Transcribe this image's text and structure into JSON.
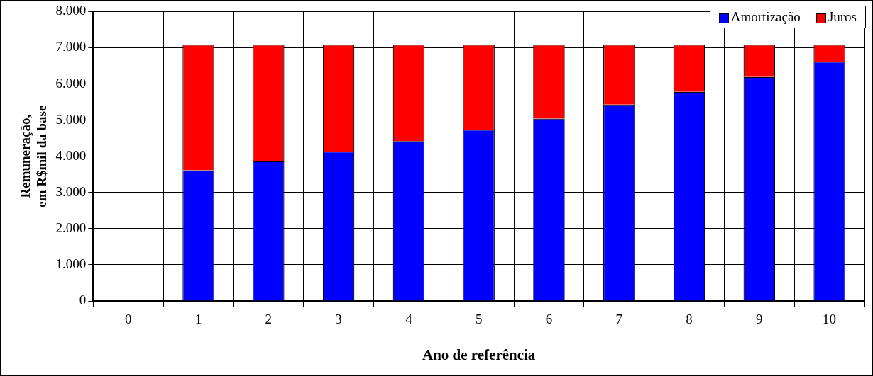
{
  "chart_data": {
    "type": "bar",
    "stacked": true,
    "xlabel": "Ano de referência",
    "ylabel": "Remuneração,\nem R$mil da base",
    "categories": [
      "0",
      "1",
      "2",
      "3",
      "4",
      "5",
      "6",
      "7",
      "8",
      "9",
      "10"
    ],
    "series": [
      {
        "name": "Amortização",
        "color": "#0000ff",
        "values": [
          0,
          3610,
          3860,
          4130,
          4420,
          4730,
          5040,
          5430,
          5780,
          6190,
          6610
        ]
      },
      {
        "name": "Juros",
        "color": "#ff0000",
        "values": [
          0,
          3470,
          3220,
          2950,
          2660,
          2350,
          2040,
          1650,
          1300,
          890,
          470
        ]
      }
    ],
    "ylim": [
      0,
      8000
    ],
    "yticks": [
      {
        "value": 0,
        "label": "0"
      },
      {
        "value": 1000,
        "label": "1.000"
      },
      {
        "value": 2000,
        "label": "2.000"
      },
      {
        "value": 3000,
        "label": "3.000"
      },
      {
        "value": 4000,
        "label": "4.000"
      },
      {
        "value": 5000,
        "label": "5.000"
      },
      {
        "value": 6000,
        "label": "6.000"
      },
      {
        "value": 7000,
        "label": "7.000"
      },
      {
        "value": 8000,
        "label": "8.000"
      }
    ],
    "grid": true,
    "legend": "top right"
  }
}
